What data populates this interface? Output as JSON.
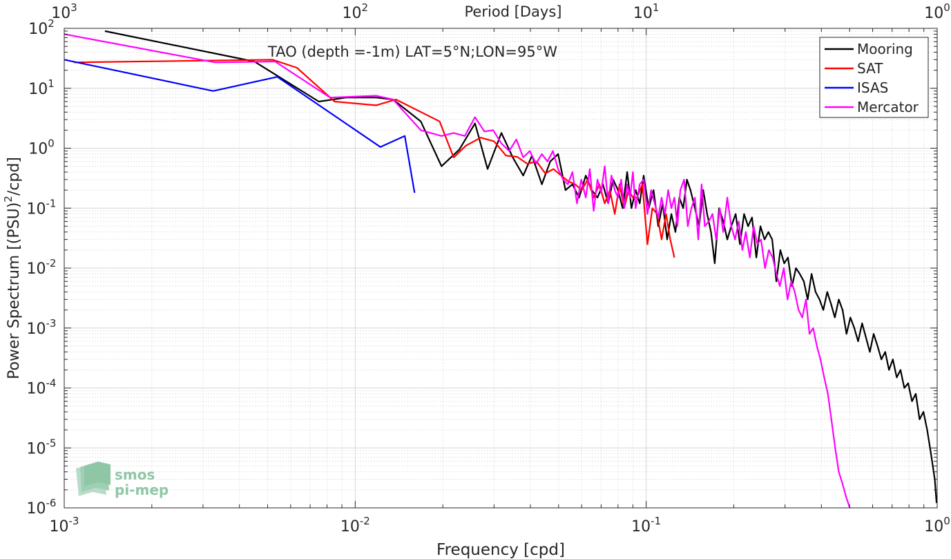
{
  "chart_data": {
    "type": "line",
    "title": "TAO (depth =-1m) LAT=5°N;LON=95°W",
    "xlabel": "Frequency [cpd]",
    "ylabel_main": "Power Spectrum [(PSU)",
    "ylabel_sup": "2",
    "ylabel_tail": "/cpd]",
    "x2label": "Period [Days]",
    "xscale": "log",
    "yscale": "log",
    "xlim": [
      0.001,
      1
    ],
    "ylim": [
      1e-06,
      100
    ],
    "grid": true,
    "legend_position": "top-right",
    "x_ticks": [
      {
        "value": 0.001,
        "base": "10",
        "exp": "-3"
      },
      {
        "value": 0.01,
        "base": "10",
        "exp": "-2"
      },
      {
        "value": 0.1,
        "base": "10",
        "exp": "-1"
      },
      {
        "value": 1,
        "base": "10",
        "exp": "0"
      }
    ],
    "y_ticks": [
      {
        "value": 100,
        "base": "10",
        "exp": "2"
      },
      {
        "value": 10,
        "base": "10",
        "exp": "1"
      },
      {
        "value": 1,
        "base": "10",
        "exp": "0"
      },
      {
        "value": 0.1,
        "base": "10",
        "exp": "-1"
      },
      {
        "value": 0.01,
        "base": "10",
        "exp": "-2"
      },
      {
        "value": 0.001,
        "base": "10",
        "exp": "-3"
      },
      {
        "value": 0.0001,
        "base": "10",
        "exp": "-4"
      },
      {
        "value": 1e-05,
        "base": "10",
        "exp": "-5"
      },
      {
        "value": 1e-06,
        "base": "10",
        "exp": "-6"
      }
    ],
    "top_ticks": [
      {
        "value": 0.001,
        "base": "10",
        "exp": "3"
      },
      {
        "value": 0.01,
        "base": "10",
        "exp": "2"
      },
      {
        "value": 0.1,
        "base": "10",
        "exp": "1"
      },
      {
        "value": 1,
        "base": "10",
        "exp": "0"
      }
    ],
    "series": [
      {
        "name": "Mooring",
        "color": "#000000",
        "x": [
          0.00138,
          0.0045,
          0.0075,
          0.0093,
          0.0118,
          0.0135,
          0.0168,
          0.0198,
          0.0228,
          0.0258,
          0.0285,
          0.0318,
          0.0348,
          0.0378,
          0.0405,
          0.0438,
          0.0468,
          0.0498,
          0.0528,
          0.0558,
          0.0588,
          0.062,
          0.065,
          0.068,
          0.071,
          0.074,
          0.077,
          0.08,
          0.083,
          0.086,
          0.089,
          0.092,
          0.095,
          0.098,
          0.102,
          0.106,
          0.11,
          0.114,
          0.118,
          0.122,
          0.126,
          0.13,
          0.134,
          0.138,
          0.142,
          0.147,
          0.152,
          0.157,
          0.162,
          0.167,
          0.172,
          0.178,
          0.184,
          0.19,
          0.196,
          0.203,
          0.21,
          0.217,
          0.224,
          0.231,
          0.239,
          0.247,
          0.255,
          0.263,
          0.271,
          0.28,
          0.289,
          0.298,
          0.307,
          0.317,
          0.327,
          0.337,
          0.348,
          0.359,
          0.37,
          0.382,
          0.394,
          0.406,
          0.419,
          0.432,
          0.445,
          0.459,
          0.473,
          0.488,
          0.503,
          0.519,
          0.535,
          0.552,
          0.569,
          0.587,
          0.605,
          0.624,
          0.643,
          0.663,
          0.683,
          0.704,
          0.726,
          0.748,
          0.771,
          0.795,
          0.819,
          0.844,
          0.87,
          0.897,
          0.924,
          0.952,
          0.981,
          0.995
        ],
        "y": [
          90,
          28,
          6,
          7,
          7,
          6.5,
          2.8,
          0.5,
          0.95,
          2.6,
          0.45,
          1.8,
          0.7,
          0.35,
          0.75,
          0.25,
          0.6,
          0.8,
          0.2,
          0.25,
          0.15,
          0.35,
          0.2,
          0.15,
          0.25,
          0.12,
          0.3,
          0.2,
          0.1,
          0.4,
          0.1,
          0.2,
          0.12,
          0.35,
          0.1,
          0.2,
          0.05,
          0.12,
          0.03,
          0.08,
          0.04,
          0.15,
          0.1,
          0.3,
          0.2,
          0.1,
          0.05,
          0.2,
          0.08,
          0.04,
          0.012,
          0.1,
          0.06,
          0.03,
          0.05,
          0.08,
          0.025,
          0.08,
          0.05,
          0.07,
          0.015,
          0.05,
          0.03,
          0.04,
          0.03,
          0.006,
          0.02,
          0.012,
          0.015,
          0.005,
          0.01,
          0.008,
          0.006,
          0.003,
          0.008,
          0.004,
          0.003,
          0.002,
          0.004,
          0.0025,
          0.0015,
          0.003,
          0.002,
          0.0008,
          0.0015,
          0.001,
          0.0006,
          0.0012,
          0.0007,
          0.0004,
          0.0008,
          0.0005,
          0.0003,
          0.0004,
          0.0002,
          0.0003,
          0.00015,
          0.0002,
          0.0001,
          0.00012,
          6e-05,
          8e-05,
          3e-05,
          4e-05,
          2e-05,
          8e-06,
          3e-06,
          1.2e-06
        ]
      },
      {
        "name": "SAT",
        "color": "#ff0000",
        "x": [
          0.00108,
          0.0052,
          0.0063,
          0.0085,
          0.0118,
          0.0138,
          0.0195,
          0.0218,
          0.024,
          0.027,
          0.03,
          0.033,
          0.036,
          0.039,
          0.042,
          0.045,
          0.048,
          0.051,
          0.054,
          0.057,
          0.06,
          0.063,
          0.066,
          0.069,
          0.072,
          0.075,
          0.078,
          0.081,
          0.084,
          0.087,
          0.09,
          0.093,
          0.097,
          0.101,
          0.105,
          0.109,
          0.113,
          0.117,
          0.121,
          0.125
        ],
        "y": [
          27,
          30,
          22,
          6,
          5.2,
          6.5,
          2.8,
          0.7,
          1.1,
          1.5,
          1.3,
          0.75,
          0.72,
          0.55,
          0.6,
          0.38,
          0.45,
          0.35,
          0.28,
          0.25,
          0.2,
          0.3,
          0.15,
          0.25,
          0.12,
          0.2,
          0.08,
          0.25,
          0.1,
          0.2,
          0.15,
          0.15,
          0.25,
          0.025,
          0.1,
          0.08,
          0.03,
          0.08,
          0.03,
          0.015
        ]
      },
      {
        "name": "ISAS",
        "color": "#0000ff",
        "x": [
          0.001,
          0.00325,
          0.0054,
          0.0122,
          0.0148,
          0.016
        ],
        "y": [
          30,
          9,
          15.5,
          1.05,
          1.6,
          0.18
        ]
      },
      {
        "name": "Mercator",
        "color": "#ff00ff",
        "x": [
          0.001,
          0.0033,
          0.0053,
          0.0082,
          0.0118,
          0.0135,
          0.0168,
          0.0198,
          0.0218,
          0.0238,
          0.0258,
          0.0278,
          0.0298,
          0.0318,
          0.0338,
          0.0358,
          0.0378,
          0.0398,
          0.0418,
          0.0438,
          0.0458,
          0.0478,
          0.0498,
          0.0518,
          0.0538,
          0.0558,
          0.0578,
          0.0598,
          0.062,
          0.064,
          0.066,
          0.068,
          0.07,
          0.072,
          0.074,
          0.076,
          0.078,
          0.08,
          0.082,
          0.084,
          0.086,
          0.088,
          0.09,
          0.092,
          0.095,
          0.098,
          0.101,
          0.104,
          0.107,
          0.11,
          0.113,
          0.116,
          0.119,
          0.122,
          0.125,
          0.128,
          0.131,
          0.135,
          0.139,
          0.143,
          0.147,
          0.151,
          0.155,
          0.159,
          0.164,
          0.169,
          0.174,
          0.179,
          0.184,
          0.19,
          0.196,
          0.202,
          0.208,
          0.214,
          0.22,
          0.227,
          0.234,
          0.241,
          0.248,
          0.256,
          0.264,
          0.272,
          0.28,
          0.288,
          0.297,
          0.306,
          0.315,
          0.324,
          0.334,
          0.344,
          0.354,
          0.364,
          0.375,
          0.386,
          0.397,
          0.409,
          0.421,
          0.433,
          0.446,
          0.459,
          0.473,
          0.487,
          0.501
        ],
        "y": [
          80,
          27,
          28,
          7,
          7.5,
          6.5,
          2,
          1.6,
          1.8,
          1.6,
          3.3,
          1.9,
          2,
          1.2,
          0.9,
          1.4,
          0.7,
          0.9,
          0.55,
          0.8,
          0.6,
          0.9,
          0.45,
          0.3,
          0.25,
          0.4,
          0.12,
          0.3,
          0.15,
          0.45,
          0.09,
          0.3,
          0.18,
          0.5,
          0.12,
          0.35,
          0.2,
          0.15,
          0.3,
          0.1,
          0.25,
          0.15,
          0.4,
          0.1,
          0.25,
          0.3,
          0.08,
          0.2,
          0.12,
          0.07,
          0.15,
          0.08,
          0.2,
          0.1,
          0.15,
          0.05,
          0.2,
          0.3,
          0.05,
          0.1,
          0.15,
          0.03,
          0.25,
          0.05,
          0.06,
          0.08,
          0.03,
          0.1,
          0.04,
          0.15,
          0.05,
          0.03,
          0.06,
          0.02,
          0.04,
          0.015,
          0.05,
          0.025,
          0.03,
          0.01,
          0.02,
          0.015,
          0.008,
          0.005,
          0.01,
          0.003,
          0.006,
          0.004,
          0.002,
          0.0015,
          0.003,
          0.0008,
          0.001,
          0.0005,
          0.0003,
          0.00015,
          8e-05,
          3e-05,
          1e-05,
          4e-06,
          2.5e-06,
          1.5e-06,
          1e-06
        ]
      }
    ]
  },
  "watermark": {
    "line1": "smos",
    "line2": "pi-mep"
  }
}
